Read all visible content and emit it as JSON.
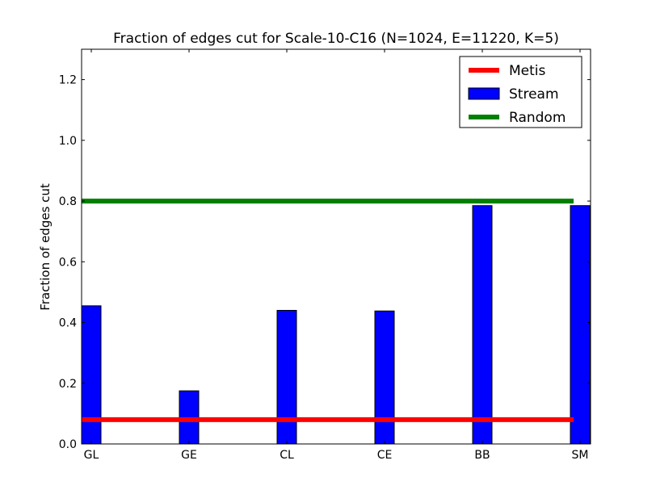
{
  "chart_data": {
    "type": "bar",
    "title": "Fraction of edges cut for Scale-10-C16 (N=1024, E=11220, K=5)",
    "xlabel": "",
    "ylabel": "Fraction of edges cut",
    "categories": [
      "GL",
      "GE",
      "CL",
      "CE",
      "BB",
      "SM"
    ],
    "ylim": [
      0,
      1.3
    ],
    "yticks": [
      "0.0",
      "0.2",
      "0.4",
      "0.6",
      "0.8",
      "1.0",
      "1.2"
    ],
    "grid": false,
    "legend_position": "top-right",
    "series": [
      {
        "name": "Metis",
        "kind": "line",
        "value": 0.08,
        "color": "#ff0000"
      },
      {
        "name": "Stream",
        "kind": "bar",
        "values": [
          0.455,
          0.175,
          0.44,
          0.438,
          0.785,
          0.785
        ],
        "color": "#0000ff"
      },
      {
        "name": "Random",
        "kind": "line",
        "value": 0.8,
        "color": "#008000"
      }
    ]
  }
}
